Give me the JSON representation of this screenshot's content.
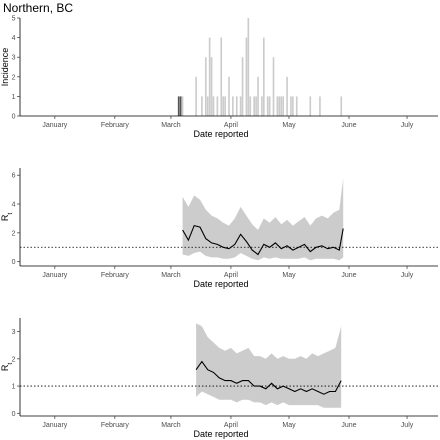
{
  "title": "Northern, BC",
  "chart_data": [
    {
      "type": "bar",
      "panel": "incidence",
      "xlabel": "Date reported",
      "ylabel": "Incidence",
      "ylim": [
        0,
        5
      ],
      "yticks": [
        0,
        1,
        2,
        3,
        4,
        5
      ],
      "x_ticks": [
        {
          "label": "January",
          "date": "2020-01-15"
        },
        {
          "label": "February",
          "date": "2020-02-15"
        },
        {
          "label": "March",
          "date": "2020-03-15"
        },
        {
          "label": "April",
          "date": "2020-04-15"
        },
        {
          "label": "May",
          "date": "2020-05-15"
        },
        {
          "label": "June",
          "date": "2020-06-15"
        },
        {
          "label": "July",
          "date": "2020-07-15"
        }
      ],
      "x_range": [
        "2019-12-28",
        "2020-07-31"
      ],
      "grid": false,
      "colors": {
        "bar": "#cccccc",
        "bar_highlight": "#555555"
      },
      "bars": [
        {
          "date": "2020-03-19",
          "value": 1,
          "highlight": true
        },
        {
          "date": "2020-03-20",
          "value": 1,
          "highlight": true
        },
        {
          "date": "2020-03-21",
          "value": 1
        },
        {
          "date": "2020-03-28",
          "value": 2
        },
        {
          "date": "2020-03-31",
          "value": 1
        },
        {
          "date": "2020-04-02",
          "value": 3
        },
        {
          "date": "2020-04-03",
          "value": 1
        },
        {
          "date": "2020-04-04",
          "value": 4
        },
        {
          "date": "2020-04-05",
          "value": 3
        },
        {
          "date": "2020-04-06",
          "value": 1
        },
        {
          "date": "2020-04-08",
          "value": 1
        },
        {
          "date": "2020-04-10",
          "value": 4
        },
        {
          "date": "2020-04-11",
          "value": 1
        },
        {
          "date": "2020-04-12",
          "value": 1
        },
        {
          "date": "2020-04-14",
          "value": 2
        },
        {
          "date": "2020-04-16",
          "value": 1
        },
        {
          "date": "2020-04-18",
          "value": 1
        },
        {
          "date": "2020-04-20",
          "value": 1
        },
        {
          "date": "2020-04-21",
          "value": 3
        },
        {
          "date": "2020-04-23",
          "value": 4
        },
        {
          "date": "2020-04-24",
          "value": 5
        },
        {
          "date": "2020-04-25",
          "value": 1
        },
        {
          "date": "2020-04-27",
          "value": 1
        },
        {
          "date": "2020-04-28",
          "value": 1
        },
        {
          "date": "2020-04-29",
          "value": 2
        },
        {
          "date": "2020-05-01",
          "value": 1
        },
        {
          "date": "2020-05-02",
          "value": 4
        },
        {
          "date": "2020-05-04",
          "value": 1
        },
        {
          "date": "2020-05-05",
          "value": 1
        },
        {
          "date": "2020-05-07",
          "value": 3
        },
        {
          "date": "2020-05-09",
          "value": 1
        },
        {
          "date": "2020-05-10",
          "value": 1
        },
        {
          "date": "2020-05-11",
          "value": 1
        },
        {
          "date": "2020-05-12",
          "value": 1
        },
        {
          "date": "2020-05-14",
          "value": 2
        },
        {
          "date": "2020-05-16",
          "value": 1
        },
        {
          "date": "2020-05-17",
          "value": 1
        },
        {
          "date": "2020-05-19",
          "value": 1
        },
        {
          "date": "2020-05-26",
          "value": 1
        },
        {
          "date": "2020-05-31",
          "value": 1
        },
        {
          "date": "2020-06-11",
          "value": 1
        }
      ]
    },
    {
      "type": "line",
      "panel": "rt-1",
      "xlabel": "Date reported",
      "ylabel": "R",
      "ylabel_subscript": "t",
      "ylim": [
        -0.3,
        6.5
      ],
      "yticks": [
        0,
        2,
        4,
        6
      ],
      "reference_line": 1,
      "x_range": [
        "2019-12-28",
        "2020-07-31"
      ],
      "grid": false,
      "colors": {
        "line": "#000000",
        "band": "#cccccc",
        "reference": "#000000"
      },
      "series": [
        {
          "dates": [
            "2020-03-21",
            "2020-03-24",
            "2020-03-27",
            "2020-03-30",
            "2020-04-02",
            "2020-04-05",
            "2020-04-08",
            "2020-04-11",
            "2020-04-14",
            "2020-04-17",
            "2020-04-20",
            "2020-04-23",
            "2020-04-26",
            "2020-04-29",
            "2020-05-02",
            "2020-05-05",
            "2020-05-08",
            "2020-05-11",
            "2020-05-14",
            "2020-05-17",
            "2020-05-20",
            "2020-05-23",
            "2020-05-26",
            "2020-05-29",
            "2020-06-01",
            "2020-06-04",
            "2020-06-07",
            "2020-06-10",
            "2020-06-12"
          ],
          "values": [
            2.2,
            1.5,
            2.5,
            2.4,
            1.6,
            1.3,
            1.2,
            1.0,
            0.9,
            1.2,
            1.9,
            1.4,
            0.8,
            0.5,
            1.2,
            1.0,
            1.3,
            0.9,
            1.1,
            0.8,
            1.0,
            1.2,
            0.7,
            1.0,
            1.1,
            0.9,
            1.0,
            0.8,
            2.3
          ],
          "lower": [
            0.5,
            0.4,
            0.6,
            0.7,
            0.4,
            0.3,
            0.3,
            0.2,
            0.2,
            0.3,
            0.6,
            0.4,
            0.2,
            0.1,
            0.3,
            0.2,
            0.3,
            0.2,
            0.2,
            0.2,
            0.2,
            0.3,
            0.1,
            0.2,
            0.2,
            0.2,
            0.2,
            0.1,
            0.3
          ],
          "upper": [
            4.5,
            3.8,
            4.6,
            4.3,
            3.6,
            3.2,
            3.0,
            2.7,
            2.5,
            3.0,
            3.8,
            3.2,
            2.6,
            2.2,
            3.0,
            2.7,
            3.1,
            2.6,
            2.9,
            2.5,
            2.8,
            3.1,
            2.5,
            3.0,
            3.2,
            3.0,
            3.4,
            3.6,
            5.8
          ]
        }
      ]
    },
    {
      "type": "line",
      "panel": "rt-2",
      "xlabel": "Date reported",
      "ylabel": "R",
      "ylabel_subscript": "t",
      "ylim": [
        -0.1,
        3.5
      ],
      "yticks": [
        0,
        1,
        2,
        3
      ],
      "reference_line": 1,
      "x_range": [
        "2019-12-28",
        "2020-07-31"
      ],
      "grid": false,
      "colors": {
        "line": "#000000",
        "band": "#cccccc",
        "reference": "#000000"
      },
      "series": [
        {
          "dates": [
            "2020-03-28",
            "2020-03-31",
            "2020-04-03",
            "2020-04-06",
            "2020-04-09",
            "2020-04-12",
            "2020-04-15",
            "2020-04-18",
            "2020-04-21",
            "2020-04-24",
            "2020-04-27",
            "2020-04-30",
            "2020-05-03",
            "2020-05-06",
            "2020-05-09",
            "2020-05-12",
            "2020-05-15",
            "2020-05-18",
            "2020-05-21",
            "2020-05-24",
            "2020-05-27",
            "2020-05-30",
            "2020-06-02",
            "2020-06-05",
            "2020-06-08",
            "2020-06-11"
          ],
          "values": [
            1.6,
            1.9,
            1.6,
            1.5,
            1.3,
            1.2,
            1.2,
            1.1,
            1.2,
            1.2,
            1.0,
            1.0,
            0.9,
            1.1,
            0.9,
            1.0,
            0.9,
            0.8,
            0.9,
            0.8,
            0.9,
            0.8,
            0.7,
            0.8,
            0.8,
            1.2
          ],
          "lower": [
            0.6,
            0.8,
            0.7,
            0.6,
            0.5,
            0.5,
            0.5,
            0.4,
            0.5,
            0.5,
            0.4,
            0.4,
            0.3,
            0.4,
            0.3,
            0.4,
            0.3,
            0.3,
            0.3,
            0.3,
            0.3,
            0.3,
            0.2,
            0.2,
            0.2,
            0.2
          ],
          "upper": [
            3.3,
            3.2,
            2.8,
            2.6,
            2.4,
            2.3,
            2.4,
            2.2,
            2.3,
            2.4,
            2.1,
            2.1,
            2.0,
            2.2,
            2.0,
            2.1,
            2.0,
            2.0,
            2.1,
            2.0,
            2.2,
            2.1,
            2.2,
            2.3,
            2.4,
            3.2
          ]
        }
      ]
    }
  ]
}
